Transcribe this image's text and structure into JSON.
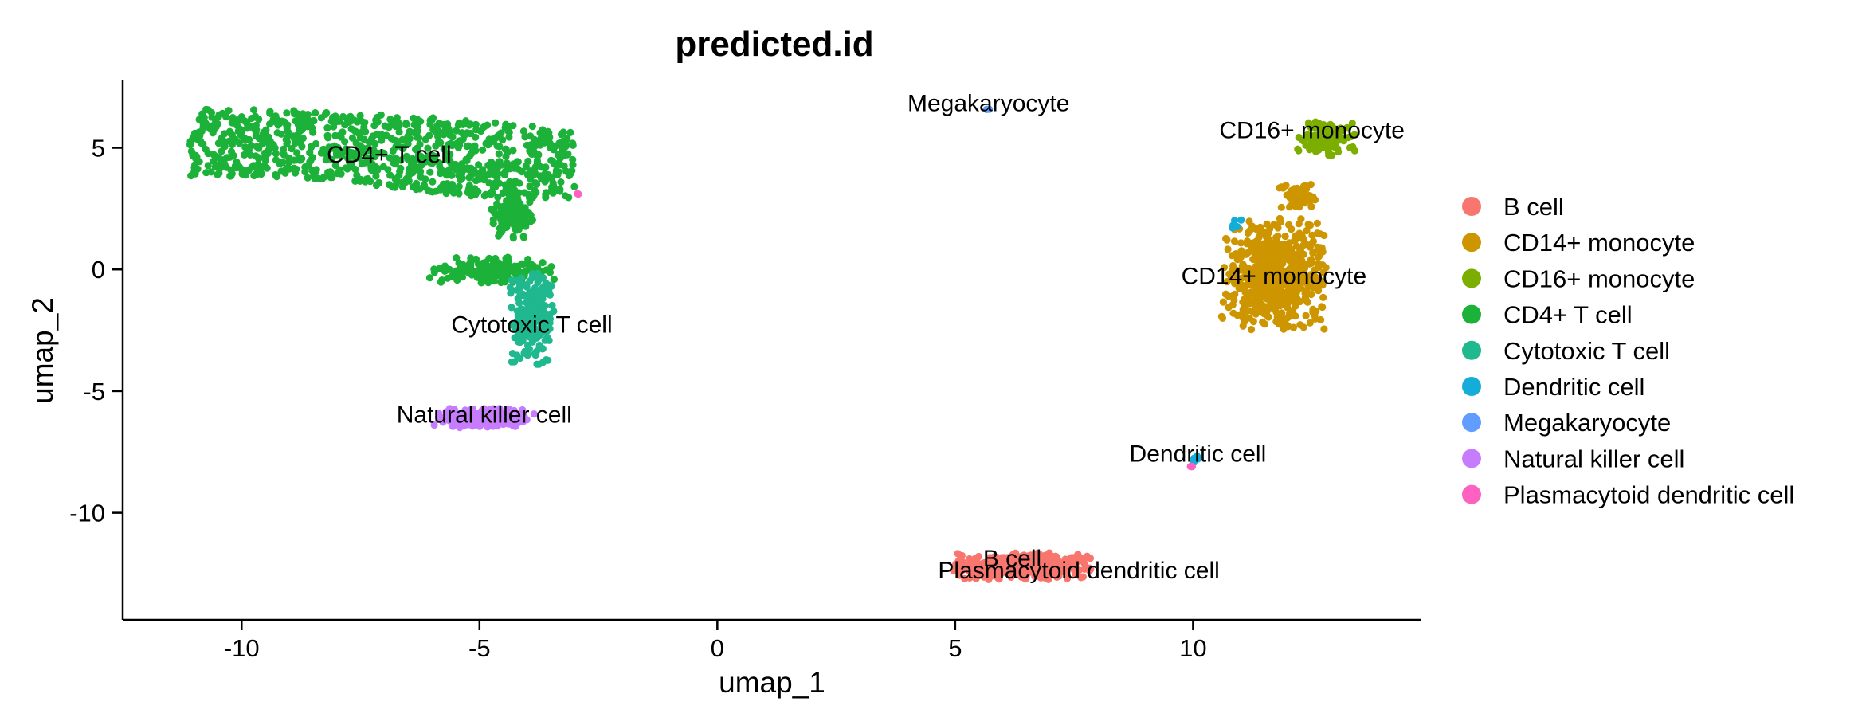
{
  "chart_data": {
    "type": "scatter",
    "title": "predicted.id",
    "xlabel": "umap_1",
    "ylabel": "umap_2",
    "xlim": [
      -12.5,
      14.8
    ],
    "ylim": [
      -14.4,
      7.8
    ],
    "x_ticks": [
      -10,
      -5,
      0,
      5,
      10
    ],
    "y_ticks": [
      5,
      0,
      -5,
      -10
    ],
    "x_tick_labels": [
      "-10",
      "-5",
      "0",
      "5",
      "10"
    ],
    "y_tick_labels": [
      "5",
      "0",
      "-5",
      "-10"
    ],
    "grid": false,
    "legend_position": "right",
    "series": [
      {
        "name": "B cell",
        "color": "#F8766D"
      },
      {
        "name": "CD14+ monocyte",
        "color": "#CD9600"
      },
      {
        "name": "CD16+ monocyte",
        "color": "#7CAE00"
      },
      {
        "name": "CD4+ T cell",
        "color": "#1CB138"
      },
      {
        "name": "Cytotoxic T cell",
        "color": "#1FB88F"
      },
      {
        "name": "Dendritic cell",
        "color": "#13ADD8"
      },
      {
        "name": "Megakaryocyte",
        "color": "#619CFF"
      },
      {
        "name": "Natural killer cell",
        "color": "#C77CFF"
      },
      {
        "name": "Plasmacytoid dendritic cell",
        "color": "#FF61C3"
      }
    ],
    "annotations": [
      {
        "text": "CD4+ T cell",
        "x": -6.9,
        "y": 4.4
      },
      {
        "text": "Megakaryocyte",
        "x": 5.7,
        "y": 6.5
      },
      {
        "text": "CD16+ monocyte",
        "x": 12.5,
        "y": 5.4
      },
      {
        "text": "CD14+ monocyte",
        "x": 11.7,
        "y": -0.6
      },
      {
        "text": "Cytotoxic T cell",
        "x": -3.9,
        "y": -2.6
      },
      {
        "text": "Natural killer cell",
        "x": -4.9,
        "y": -6.3
      },
      {
        "text": "Dendritic cell",
        "x": 10.1,
        "y": -7.9
      },
      {
        "text": "B cell",
        "x": 6.2,
        "y": -12.2
      },
      {
        "text": "Plasmacytoid dendritic cell",
        "x": 7.6,
        "y": -12.7
      }
    ]
  }
}
